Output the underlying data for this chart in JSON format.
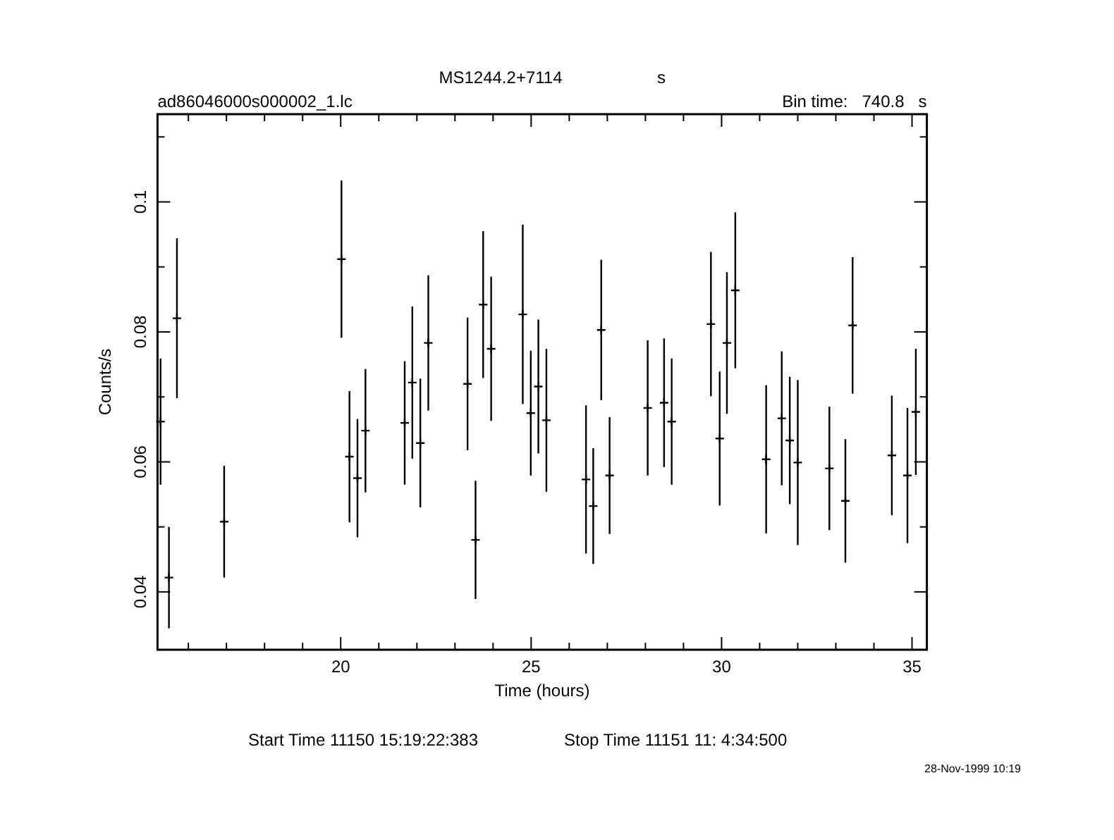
{
  "chart_data": {
    "type": "scatter",
    "title": "MS1244.2+7114",
    "subtitle": "ad86046000s000002_1.lc",
    "xlabel": "Time (hours)",
    "ylabel": "Counts/s",
    "annotations": [
      "s",
      "Bin time:   740.8   s",
      "Start Time 11150 15:19:22:383",
      "Stop Time 11151 11: 4:34:500",
      "28-Nov-1999 10:19"
    ],
    "marker": "cross",
    "grid": false,
    "xlim": [
      15.19,
      35.39
    ],
    "ylim": [
      0.0311,
      0.1135
    ],
    "xticks": [
      {
        "value": 16,
        "label": null
      },
      {
        "value": 17,
        "label": null
      },
      {
        "value": 18,
        "label": null
      },
      {
        "value": 19,
        "label": null
      },
      20,
      {
        "value": 21,
        "label": null
      },
      {
        "value": 22,
        "label": null
      },
      {
        "value": 23,
        "label": null
      },
      {
        "value": 24,
        "label": null
      },
      25,
      {
        "value": 26,
        "label": null
      },
      {
        "value": 27,
        "label": null
      },
      {
        "value": 28,
        "label": null
      },
      {
        "value": 29,
        "label": null
      },
      30,
      {
        "value": 31,
        "label": null
      },
      {
        "value": 32,
        "label": null
      },
      {
        "value": 33,
        "label": null
      },
      {
        "value": 34,
        "label": null
      },
      35
    ],
    "yticks": [
      0.04,
      {
        "value": 0.05,
        "label": null
      },
      0.06,
      {
        "value": 0.07,
        "label": null
      },
      0.08,
      {
        "value": 0.09,
        "label": null
      },
      {
        "value": 0.1,
        "label": "0.1"
      },
      {
        "value": 0.11,
        "label": null
      }
    ],
    "series": [
      {
        "color": "#000000",
        "x": [
          15.27,
          15.49,
          15.7,
          16.94,
          20.02,
          20.23,
          20.44,
          20.65,
          21.68,
          21.88,
          22.09,
          22.3,
          23.33,
          23.54,
          23.74,
          23.95,
          24.78,
          24.99,
          25.19,
          25.4,
          26.44,
          26.63,
          26.84,
          27.06,
          28.06,
          28.49,
          28.69,
          29.72,
          29.95,
          30.14,
          30.36,
          31.17,
          31.58,
          31.79,
          32.0,
          32.83,
          33.25,
          33.44,
          34.47,
          34.88,
          35.1
        ],
        "values": [
          0.0662,
          0.0422,
          0.0821,
          0.0508,
          0.0912,
          0.0608,
          0.0575,
          0.0648,
          0.066,
          0.0722,
          0.0629,
          0.0783,
          0.072,
          0.048,
          0.0842,
          0.0774,
          0.0827,
          0.0675,
          0.0716,
          0.0664,
          0.0573,
          0.0532,
          0.0803,
          0.0579,
          0.0683,
          0.0691,
          0.0662,
          0.0812,
          0.0636,
          0.0783,
          0.0864,
          0.0604,
          0.0667,
          0.0633,
          0.0599,
          0.059,
          0.054,
          0.081,
          0.061,
          0.0579,
          0.0677
        ],
        "errors": [
          0.0097,
          0.0078,
          0.0123,
          0.0086,
          0.0121,
          0.0101,
          0.0091,
          0.0095,
          0.0095,
          0.0117,
          0.0099,
          0.0104,
          0.0102,
          0.0091,
          0.0113,
          0.0111,
          0.0138,
          0.0096,
          0.0103,
          0.011,
          0.0114,
          0.0089,
          0.0108,
          0.009,
          0.0104,
          0.0099,
          0.0097,
          0.0111,
          0.0103,
          0.0109,
          0.012,
          0.0114,
          0.0103,
          0.0098,
          0.0127,
          0.0095,
          0.0095,
          0.0105,
          0.0092,
          0.0104,
          0.0097
        ]
      }
    ]
  }
}
